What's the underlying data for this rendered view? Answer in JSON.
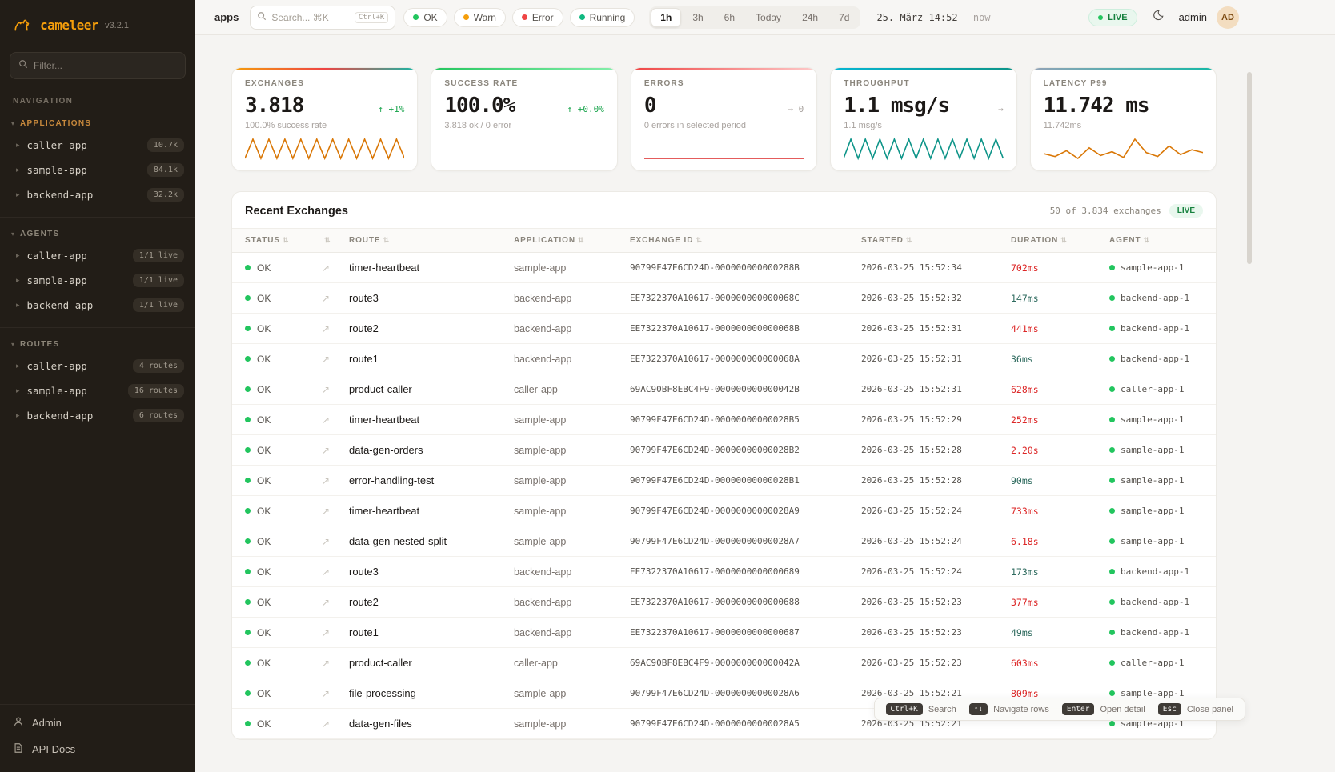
{
  "brand": {
    "name": "cameleer",
    "version": "v3.2.1"
  },
  "sidebar": {
    "filter_placeholder": "Filter...",
    "nav_label": "NAVIGATION",
    "sections": [
      {
        "label": "APPLICATIONS",
        "active": true,
        "items": [
          {
            "name": "caller-app",
            "badge": "10.7k"
          },
          {
            "name": "sample-app",
            "badge": "84.1k"
          },
          {
            "name": "backend-app",
            "badge": "32.2k"
          }
        ]
      },
      {
        "label": "AGENTS",
        "active": false,
        "items": [
          {
            "name": "caller-app",
            "badge": "1/1 live"
          },
          {
            "name": "sample-app",
            "badge": "1/1 live"
          },
          {
            "name": "backend-app",
            "badge": "1/1 live"
          }
        ]
      },
      {
        "label": "ROUTES",
        "active": false,
        "items": [
          {
            "name": "caller-app",
            "badge": "4 routes"
          },
          {
            "name": "sample-app",
            "badge": "16 routes"
          },
          {
            "name": "backend-app",
            "badge": "6 routes"
          }
        ]
      }
    ],
    "footer": [
      {
        "label": "Admin",
        "icon": "admin-icon"
      },
      {
        "label": "API Docs",
        "icon": "docs-icon"
      }
    ]
  },
  "topbar": {
    "context_label": "apps",
    "search_placeholder": "Search... ⌘K",
    "search_shortcut": "Ctrl+K",
    "status_filters": [
      {
        "label": "OK",
        "color": "#22c55e"
      },
      {
        "label": "Warn",
        "color": "#f59e0b"
      },
      {
        "label": "Error",
        "color": "#ef4444"
      },
      {
        "label": "Running",
        "color": "#10b981"
      }
    ],
    "time_ranges": [
      "1h",
      "3h",
      "6h",
      "Today",
      "24h",
      "7d"
    ],
    "active_range": "1h",
    "date_label": "25. März 14:52",
    "date_sep": "—",
    "date_now": "now",
    "live_label": "LIVE",
    "user_name": "admin",
    "avatar_initials": "AD"
  },
  "stats": {
    "cards": [
      {
        "id": "exchanges",
        "label": "EXCHANGES",
        "value": "3.818",
        "delta": "↑ +1%",
        "delta_kind": "up",
        "sub": "100.0% success rate",
        "accent": [
          "#f59e0b",
          "#ef4444",
          "#14b8a6"
        ],
        "spark_color": "#d97706",
        "spark": [
          2,
          12,
          2,
          12,
          2,
          12,
          2,
          12,
          2,
          12,
          2,
          12,
          2,
          12,
          2,
          12,
          2,
          12,
          2,
          12,
          2
        ]
      },
      {
        "id": "success-rate",
        "label": "SUCCESS RATE",
        "value": "100.0%",
        "delta": "↑ +0.0%",
        "delta_kind": "up",
        "sub": "3.818 ok / 0 error",
        "accent": [
          "#22c55e",
          "#86efac"
        ],
        "spark_color": "#16a34a",
        "spark": []
      },
      {
        "id": "errors",
        "label": "ERRORS",
        "value": "0",
        "delta": "→ 0",
        "delta_kind": "flat",
        "sub": "0 errors in selected period",
        "accent": [
          "#ef4444",
          "#fecaca"
        ],
        "spark_color": "#dc2626",
        "spark": [
          0,
          0
        ]
      },
      {
        "id": "throughput",
        "label": "THROUGHPUT",
        "value": "1.1 msg/s",
        "delta": "→",
        "delta_kind": "flat",
        "sub": "1.1 msg/s",
        "accent": [
          "#06b6d4",
          "#0d9488"
        ],
        "spark_color": "#0d9488",
        "spark": [
          2,
          12,
          2,
          12,
          2,
          12,
          2,
          12,
          2,
          12,
          2,
          12,
          2,
          12,
          2,
          12,
          2,
          12,
          2,
          12,
          2,
          12,
          2
        ]
      },
      {
        "id": "latency-p99",
        "label": "LATENCY P99",
        "value": "11.742 ms",
        "delta": "",
        "delta_kind": "flat",
        "sub": "11.742ms",
        "accent": [
          "#94a3b8",
          "#14b8a6"
        ],
        "spark_color": "#d97706",
        "spark": [
          11.6,
          11.3,
          11.9,
          11.1,
          12.2,
          11.4,
          11.8,
          11.2,
          13.1,
          11.7,
          11.3,
          12.4,
          11.5,
          12.0,
          11.7
        ]
      }
    ]
  },
  "exchanges_panel": {
    "title": "Recent Exchanges",
    "count_label": "50 of 3.834 exchanges",
    "live_label": "LIVE",
    "columns": [
      "STATUS",
      "",
      "ROUTE",
      "APPLICATION",
      "EXCHANGE ID",
      "STARTED",
      "DURATION",
      "AGENT"
    ],
    "rows": [
      {
        "status": "OK",
        "route": "timer-heartbeat",
        "app": "sample-app",
        "id": "90799F47E6CD24D-000000000000288B",
        "started": "2026-03-25 15:52:34",
        "duration": "702ms",
        "slow": true,
        "agent": "sample-app-1"
      },
      {
        "status": "OK",
        "route": "route3",
        "app": "backend-app",
        "id": "EE7322370A10617-000000000000068C",
        "started": "2026-03-25 15:52:32",
        "duration": "147ms",
        "slow": false,
        "agent": "backend-app-1"
      },
      {
        "status": "OK",
        "route": "route2",
        "app": "backend-app",
        "id": "EE7322370A10617-000000000000068B",
        "started": "2026-03-25 15:52:31",
        "duration": "441ms",
        "slow": true,
        "agent": "backend-app-1"
      },
      {
        "status": "OK",
        "route": "route1",
        "app": "backend-app",
        "id": "EE7322370A10617-000000000000068A",
        "started": "2026-03-25 15:52:31",
        "duration": "36ms",
        "slow": false,
        "agent": "backend-app-1"
      },
      {
        "status": "OK",
        "route": "product-caller",
        "app": "caller-app",
        "id": "69AC90BF8EBC4F9-000000000000042B",
        "started": "2026-03-25 15:52:31",
        "duration": "628ms",
        "slow": true,
        "agent": "caller-app-1"
      },
      {
        "status": "OK",
        "route": "timer-heartbeat",
        "app": "sample-app",
        "id": "90799F47E6CD24D-00000000000028B5",
        "started": "2026-03-25 15:52:29",
        "duration": "252ms",
        "slow": true,
        "agent": "sample-app-1"
      },
      {
        "status": "OK",
        "route": "data-gen-orders",
        "app": "sample-app",
        "id": "90799F47E6CD24D-00000000000028B2",
        "started": "2026-03-25 15:52:28",
        "duration": "2.20s",
        "slow": true,
        "agent": "sample-app-1"
      },
      {
        "status": "OK",
        "route": "error-handling-test",
        "app": "sample-app",
        "id": "90799F47E6CD24D-00000000000028B1",
        "started": "2026-03-25 15:52:28",
        "duration": "90ms",
        "slow": false,
        "agent": "sample-app-1"
      },
      {
        "status": "OK",
        "route": "timer-heartbeat",
        "app": "sample-app",
        "id": "90799F47E6CD24D-00000000000028A9",
        "started": "2026-03-25 15:52:24",
        "duration": "733ms",
        "slow": true,
        "agent": "sample-app-1"
      },
      {
        "status": "OK",
        "route": "data-gen-nested-split",
        "app": "sample-app",
        "id": "90799F47E6CD24D-00000000000028A7",
        "started": "2026-03-25 15:52:24",
        "duration": "6.18s",
        "slow": true,
        "agent": "sample-app-1"
      },
      {
        "status": "OK",
        "route": "route3",
        "app": "backend-app",
        "id": "EE7322370A10617-0000000000000689",
        "started": "2026-03-25 15:52:24",
        "duration": "173ms",
        "slow": false,
        "agent": "backend-app-1"
      },
      {
        "status": "OK",
        "route": "route2",
        "app": "backend-app",
        "id": "EE7322370A10617-0000000000000688",
        "started": "2026-03-25 15:52:23",
        "duration": "377ms",
        "slow": true,
        "agent": "backend-app-1"
      },
      {
        "status": "OK",
        "route": "route1",
        "app": "backend-app",
        "id": "EE7322370A10617-0000000000000687",
        "started": "2026-03-25 15:52:23",
        "duration": "49ms",
        "slow": false,
        "agent": "backend-app-1"
      },
      {
        "status": "OK",
        "route": "product-caller",
        "app": "caller-app",
        "id": "69AC90BF8EBC4F9-000000000000042A",
        "started": "2026-03-25 15:52:23",
        "duration": "603ms",
        "slow": true,
        "agent": "caller-app-1"
      },
      {
        "status": "OK",
        "route": "file-processing",
        "app": "sample-app",
        "id": "90799F47E6CD24D-00000000000028A6",
        "started": "2026-03-25 15:52:21",
        "duration": "809ms",
        "slow": true,
        "agent": "sample-app-1"
      },
      {
        "status": "OK",
        "route": "data-gen-files",
        "app": "sample-app",
        "id": "90799F47E6CD24D-00000000000028A5",
        "started": "2026-03-25 15:52:21",
        "duration": "",
        "slow": false,
        "agent": "sample-app-1"
      }
    ]
  },
  "hints": [
    {
      "key": "Ctrl+K",
      "label": "Search"
    },
    {
      "key": "↑↓",
      "label": "Navigate rows"
    },
    {
      "key": "Enter",
      "label": "Open detail"
    },
    {
      "key": "Esc",
      "label": "Close panel"
    }
  ]
}
